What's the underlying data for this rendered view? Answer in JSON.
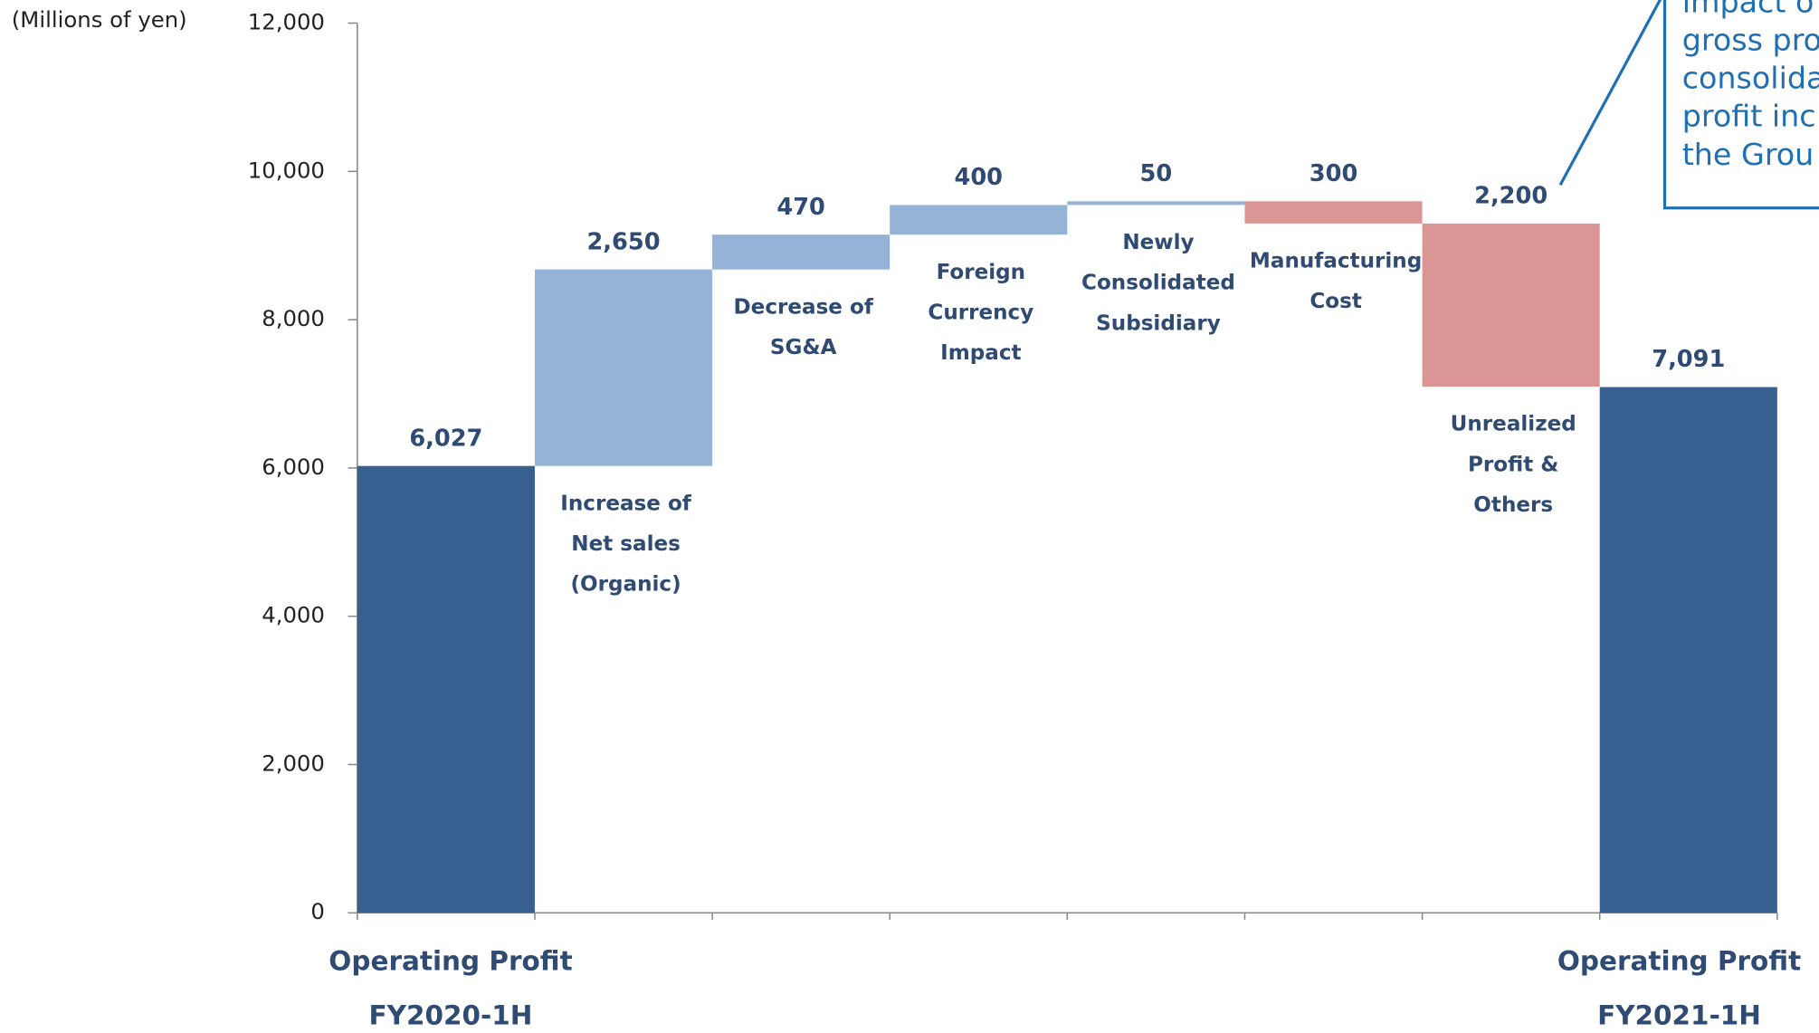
{
  "chart_data": {
    "type": "waterfall",
    "ylabel": "(Millions of yen)",
    "categories": [
      [
        "Operating Profit",
        "FY2020-1H"
      ],
      [
        "Increase of",
        "Net sales",
        "(Organic)"
      ],
      [
        "Decrease of",
        "SG&A"
      ],
      [
        "Foreign",
        "Currency",
        "Impact"
      ],
      [
        "Newly",
        "Consolidated",
        "Subsidiary"
      ],
      [
        "Manufacturing",
        "Cost"
      ],
      [
        "Unrealized",
        "Profit &",
        "Others"
      ],
      [
        "Operating Profit",
        "FY2021-1H"
      ]
    ],
    "values": [
      6027,
      2650,
      470,
      400,
      50,
      -300,
      -2200,
      7091
    ],
    "value_labels": [
      "6,027",
      "2,650",
      "470",
      "400",
      "50",
      "300",
      "2,200",
      "7,091"
    ],
    "measure": [
      "absolute",
      "relative",
      "relative",
      "relative",
      "relative",
      "relative",
      "relative",
      "absolute"
    ],
    "colors": {
      "total": "#375f8f",
      "increase": "#95b3d7",
      "decrease": "#d99694"
    },
    "ylim": [
      0,
      12000
    ],
    "yticks": [
      0,
      {
        "value": 2000,
        "label": "2,000"
      },
      {
        "value": 4000,
        "label": "4,000"
      },
      {
        "value": 6000,
        "label": "6,000"
      },
      {
        "value": 8000,
        "label": "8,000"
      },
      {
        "value": 10000,
        "label": "10,000"
      },
      {
        "value": 12000,
        "label": "12,000"
      }
    ],
    "annotation": [
      "impact o",
      "gross pro",
      "consolida",
      "profit inc",
      "the Grou"
    ]
  }
}
